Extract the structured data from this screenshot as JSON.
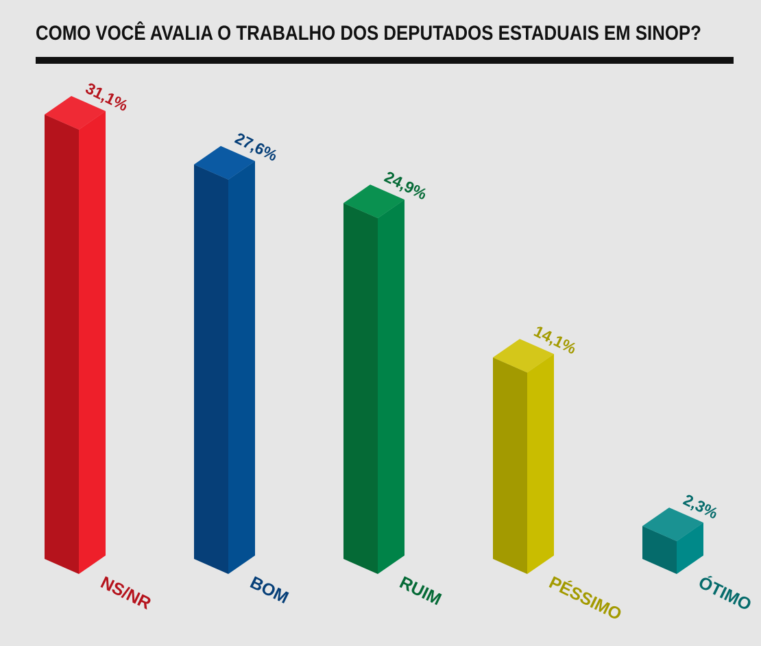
{
  "title": "COMO VOCÊ AVALIA O TRABALHO DOS DEPUTADOS ESTADUAIS EM SINOP?",
  "colors": {
    "background": "#e6e6e6",
    "title": "#111111"
  },
  "chart_data": {
    "type": "bar",
    "title": "COMO VOCÊ AVALIA O TRABALHO DOS DEPUTADOS ESTADUAIS EM SINOP?",
    "categories": [
      "NS/NR",
      "BOM",
      "RUIM",
      "PÉSSIMO",
      "ÓTIMO"
    ],
    "values": [
      31.1,
      27.6,
      24.9,
      14.1,
      2.3
    ],
    "value_labels": [
      "31,1%",
      "27,6%",
      "24,9%",
      "14,1%",
      "2,3%"
    ],
    "unit": "%",
    "ylim": [
      0,
      31.1
    ],
    "grid": false,
    "legend": "none",
    "style": "3d isometric columns",
    "series_colors": [
      {
        "top": "#ef2a35",
        "front": "#b5131c",
        "side": "#ee1f2a",
        "label": "#b5131c"
      },
      {
        "top": "#0b5aa3",
        "front": "#063f78",
        "side": "#034f91",
        "label": "#063f78"
      },
      {
        "top": "#0a9150",
        "front": "#056a36",
        "side": "#008348",
        "label": "#056a36"
      },
      {
        "top": "#d4c71a",
        "front": "#a39a00",
        "side": "#c9bd00",
        "label": "#a39a00"
      },
      {
        "top": "#1a9292",
        "front": "#056b6b",
        "side": "#008989",
        "label": "#056b6b"
      }
    ]
  }
}
